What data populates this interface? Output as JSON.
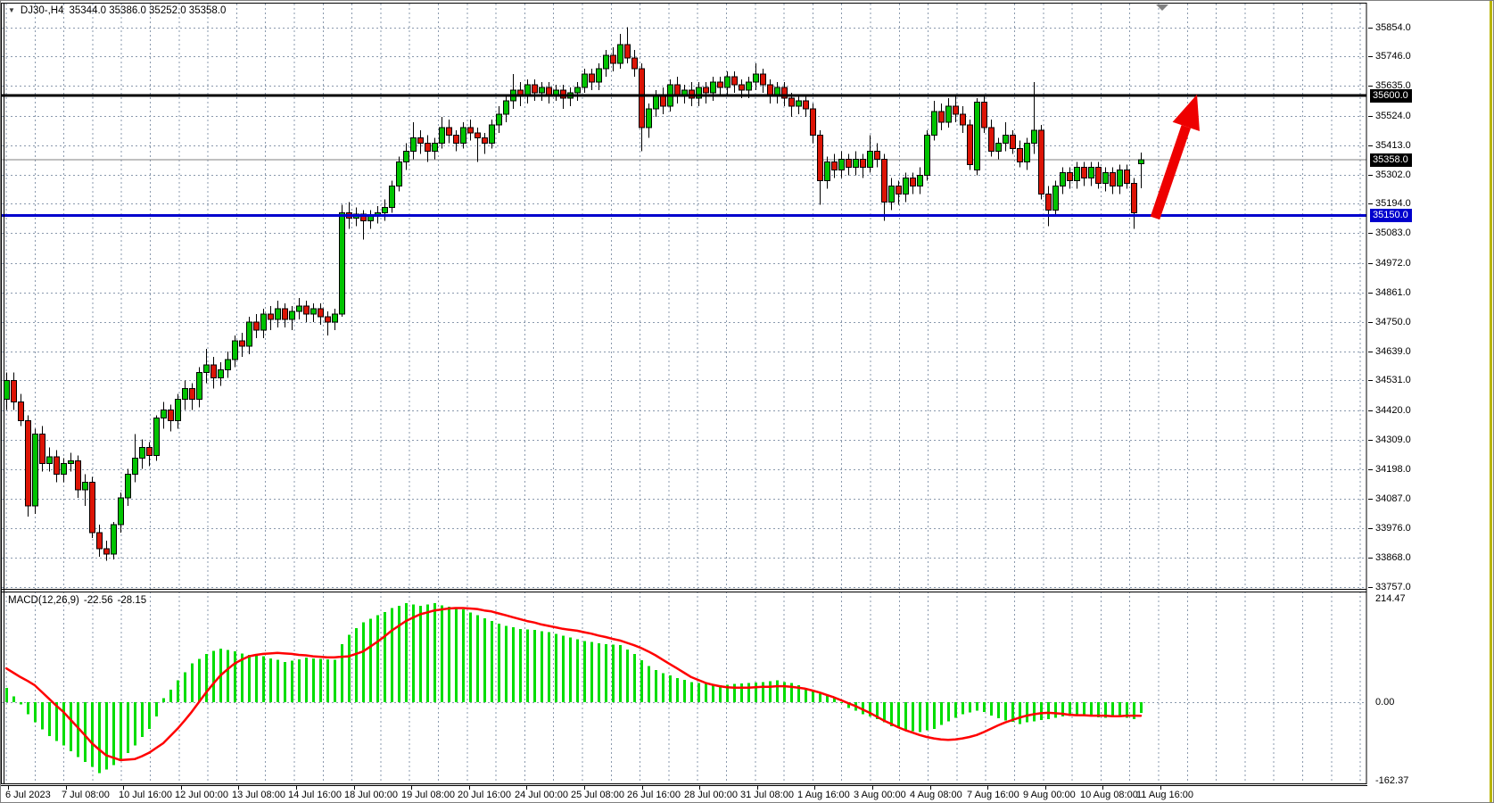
{
  "header": {
    "dropdown_marker": "▼",
    "symbol": "DJ30-,H4",
    "ohlc_values": "35344.0 35386.0 35252.0 35358.0"
  },
  "colors": {
    "bull": "#00c300",
    "bear": "#dc1405",
    "wick": "#000000",
    "grid": "#8a99ad",
    "macd_hist": "#00dd00",
    "macd_signal": "#ff0000",
    "resistance_line": "#000000",
    "support_line": "#0000cd",
    "current_price_line": "#808080",
    "arrow": "#ee0000",
    "badge_text": "#ffffff",
    "right_strip": "#b8b400",
    "scroll_marker": "#808080"
  },
  "chart_data": {
    "type": "candlestick",
    "symbol": "DJ30-",
    "timeframe": "H4",
    "last_bar": {
      "open": 35344.0,
      "high": 35386.0,
      "low": 35252.0,
      "close": 35358.0
    },
    "price_axis_ticks": [
      "35854.0",
      "35746.0",
      "35635.0",
      "35524.0",
      "35413.0",
      "35302.0",
      "35194.0",
      "35083.0",
      "34972.0",
      "34861.0",
      "34750.0",
      "34639.0",
      "34531.0",
      "34420.0",
      "34309.0",
      "34198.0",
      "34087.0",
      "33976.0",
      "33868.0",
      "33757.0"
    ],
    "price_badges": [
      {
        "label": "35600.0",
        "price": 35600,
        "bg": "#000000"
      },
      {
        "label": "35358.0",
        "price": 35358,
        "bg": "#000000"
      },
      {
        "label": "35150.0",
        "price": 35150,
        "bg": "#0000cd"
      }
    ],
    "horizontal_lines": [
      {
        "price": 35600,
        "color": "#000000",
        "width": 3,
        "role": "resistance"
      },
      {
        "price": 35358,
        "color": "#808080",
        "width": 1,
        "role": "current-price"
      },
      {
        "price": 35150,
        "color": "#0000cd",
        "width": 3,
        "role": "support"
      }
    ],
    "time_axis_labels": [
      "6 Jul 2023",
      "7 Jul 08:00",
      "10 Jul 16:00",
      "12 Jul 00:00",
      "13 Jul 08:00",
      "14 Jul 16:00",
      "18 Jul 00:00",
      "19 Jul 08:00",
      "20 Jul 16:00",
      "24 Jul 00:00",
      "25 Jul 08:00",
      "26 Jul 16:00",
      "28 Jul 00:00",
      "31 Jul 08:00",
      "1 Aug 16:00",
      "3 Aug 00:00",
      "4 Aug 08:00",
      "7 Aug 16:00",
      "9 Aug 00:00",
      "10 Aug 08:00",
      "11 Aug 16:00"
    ],
    "candles": [
      [
        34460,
        34560,
        34420,
        34530
      ],
      [
        34530,
        34560,
        34420,
        34450
      ],
      [
        34450,
        34480,
        34360,
        34380
      ],
      [
        34380,
        34400,
        34020,
        34060
      ],
      [
        34060,
        34350,
        34030,
        34330
      ],
      [
        34330,
        34360,
        34190,
        34220
      ],
      [
        34220,
        34280,
        34190,
        34245
      ],
      [
        34245,
        34270,
        34150,
        34180
      ],
      [
        34180,
        34240,
        34150,
        34220
      ],
      [
        34220,
        34260,
        34190,
        34230
      ],
      [
        34230,
        34250,
        34090,
        34120
      ],
      [
        34120,
        34180,
        34060,
        34150
      ],
      [
        34150,
        34170,
        33940,
        33960
      ],
      [
        33960,
        33990,
        33870,
        33900
      ],
      [
        33900,
        33930,
        33855,
        33880
      ],
      [
        33880,
        34000,
        33860,
        33990
      ],
      [
        33990,
        34110,
        33960,
        34090
      ],
      [
        34090,
        34200,
        34060,
        34180
      ],
      [
        34180,
        34330,
        34150,
        34240
      ],
      [
        34240,
        34310,
        34200,
        34280
      ],
      [
        34280,
        34300,
        34210,
        34250
      ],
      [
        34250,
        34400,
        34230,
        34390
      ],
      [
        34390,
        34450,
        34350,
        34420
      ],
      [
        34420,
        34440,
        34340,
        34380
      ],
      [
        34380,
        34480,
        34350,
        34460
      ],
      [
        34460,
        34530,
        34420,
        34500
      ],
      [
        34500,
        34520,
        34420,
        34460
      ],
      [
        34460,
        34580,
        34430,
        34560
      ],
      [
        34560,
        34650,
        34520,
        34590
      ],
      [
        34590,
        34620,
        34500,
        34540
      ],
      [
        34540,
        34600,
        34510,
        34570
      ],
      [
        34570,
        34640,
        34540,
        34610
      ],
      [
        34610,
        34700,
        34580,
        34680
      ],
      [
        34680,
        34710,
        34620,
        34660
      ],
      [
        34660,
        34770,
        34630,
        34750
      ],
      [
        34750,
        34780,
        34690,
        34720
      ],
      [
        34720,
        34800,
        34690,
        34780
      ],
      [
        34780,
        34810,
        34720,
        34760
      ],
      [
        34760,
        34830,
        34730,
        34800
      ],
      [
        34800,
        34820,
        34730,
        34760
      ],
      [
        34760,
        34810,
        34720,
        34790
      ],
      [
        34790,
        34840,
        34760,
        34810
      ],
      [
        34810,
        34830,
        34750,
        34780
      ],
      [
        34780,
        34820,
        34750,
        34800
      ],
      [
        34800,
        34820,
        34740,
        34770
      ],
      [
        34770,
        34790,
        34700,
        34750
      ],
      [
        34750,
        34800,
        34720,
        34780
      ],
      [
        34780,
        35190,
        34770,
        35160
      ],
      [
        35160,
        35200,
        35100,
        35140
      ],
      [
        35140,
        35180,
        35110,
        35155
      ],
      [
        35155,
        35170,
        35060,
        35130
      ],
      [
        35130,
        35170,
        35100,
        35150
      ],
      [
        35150,
        35185,
        35120,
        35160
      ],
      [
        35160,
        35210,
        35130,
        35180
      ],
      [
        35180,
        35280,
        35160,
        35260
      ],
      [
        35260,
        35370,
        35240,
        35350
      ],
      [
        35350,
        35420,
        35320,
        35390
      ],
      [
        35390,
        35500,
        35360,
        35440
      ],
      [
        35440,
        35470,
        35380,
        35420
      ],
      [
        35420,
        35450,
        35350,
        35390
      ],
      [
        35390,
        35440,
        35360,
        35420
      ],
      [
        35420,
        35520,
        35400,
        35480
      ],
      [
        35480,
        35510,
        35420,
        35450
      ],
      [
        35450,
        35470,
        35390,
        35420
      ],
      [
        35420,
        35500,
        35400,
        35480
      ],
      [
        35480,
        35510,
        35430,
        35460
      ],
      [
        35460,
        35480,
        35350,
        35440
      ],
      [
        35440,
        35460,
        35380,
        35420
      ],
      [
        35420,
        35510,
        35400,
        35490
      ],
      [
        35490,
        35560,
        35460,
        35530
      ],
      [
        35530,
        35600,
        35500,
        35580
      ],
      [
        35580,
        35680,
        35550,
        35620
      ],
      [
        35620,
        35650,
        35560,
        35600
      ],
      [
        35600,
        35660,
        35570,
        35640
      ],
      [
        35640,
        35660,
        35580,
        35610
      ],
      [
        35610,
        35650,
        35580,
        35630
      ],
      [
        35630,
        35650,
        35570,
        35600
      ],
      [
        35600,
        35640,
        35580,
        35620
      ],
      [
        35620,
        35640,
        35550,
        35590
      ],
      [
        35590,
        35630,
        35560,
        35610
      ],
      [
        35610,
        35650,
        35580,
        35630
      ],
      [
        35630,
        35700,
        35610,
        35680
      ],
      [
        35680,
        35700,
        35620,
        35650
      ],
      [
        35650,
        35720,
        35620,
        35700
      ],
      [
        35700,
        35770,
        35670,
        35750
      ],
      [
        35750,
        35780,
        35690,
        35720
      ],
      [
        35720,
        35830,
        35700,
        35790
      ],
      [
        35790,
        35855,
        35720,
        35740
      ],
      [
        35740,
        35770,
        35670,
        35700
      ],
      [
        35700,
        35720,
        35390,
        35480
      ],
      [
        35480,
        35570,
        35440,
        35550
      ],
      [
        35550,
        35620,
        35520,
        35600
      ],
      [
        35600,
        35630,
        35530,
        35560
      ],
      [
        35560,
        35660,
        35540,
        35640
      ],
      [
        35640,
        35670,
        35570,
        35600
      ],
      [
        35600,
        35640,
        35570,
        35620
      ],
      [
        35620,
        35650,
        35560,
        35590
      ],
      [
        35590,
        35650,
        35560,
        35630
      ],
      [
        35630,
        35650,
        35570,
        35610
      ],
      [
        35610,
        35670,
        35580,
        35650
      ],
      [
        35650,
        35670,
        35600,
        35630
      ],
      [
        35630,
        35690,
        35600,
        35670
      ],
      [
        35670,
        35690,
        35610,
        35640
      ],
      [
        35640,
        35660,
        35590,
        35620
      ],
      [
        35620,
        35670,
        35590,
        35650
      ],
      [
        35650,
        35720,
        35620,
        35680
      ],
      [
        35680,
        35700,
        35610,
        35640
      ],
      [
        35640,
        35660,
        35570,
        35600
      ],
      [
        35600,
        35650,
        35570,
        35630
      ],
      [
        35630,
        35650,
        35560,
        35590
      ],
      [
        35590,
        35610,
        35520,
        35560
      ],
      [
        35560,
        35600,
        35530,
        35580
      ],
      [
        35580,
        35600,
        35520,
        35550
      ],
      [
        35550,
        35570,
        35420,
        35450
      ],
      [
        35450,
        35470,
        35190,
        35280
      ],
      [
        35280,
        35370,
        35250,
        35350
      ],
      [
        35350,
        35380,
        35290,
        35320
      ],
      [
        35320,
        35390,
        35290,
        35360
      ],
      [
        35360,
        35380,
        35300,
        35330
      ],
      [
        35330,
        35390,
        35300,
        35360
      ],
      [
        35360,
        35380,
        35290,
        35330
      ],
      [
        35330,
        35450,
        35310,
        35390
      ],
      [
        35390,
        35420,
        35330,
        35360
      ],
      [
        35360,
        35380,
        35130,
        35200
      ],
      [
        35200,
        35290,
        35170,
        35260
      ],
      [
        35260,
        35280,
        35190,
        35230
      ],
      [
        35230,
        35310,
        35200,
        35290
      ],
      [
        35290,
        35310,
        35230,
        35260
      ],
      [
        35260,
        35330,
        35230,
        35300
      ],
      [
        35300,
        35470,
        35280,
        35450
      ],
      [
        35450,
        35580,
        35430,
        35540
      ],
      [
        35540,
        35570,
        35470,
        35500
      ],
      [
        35500,
        35590,
        35480,
        35560
      ],
      [
        35560,
        35600,
        35500,
        35530
      ],
      [
        35530,
        35560,
        35460,
        35490
      ],
      [
        35490,
        35510,
        35320,
        35340
      ],
      [
        35320,
        35590,
        35300,
        35575
      ],
      [
        35575,
        35600,
        35460,
        35480
      ],
      [
        35480,
        35510,
        35370,
        35390
      ],
      [
        35390,
        35440,
        35360,
        35420
      ],
      [
        35420,
        35500,
        35390,
        35450
      ],
      [
        35450,
        35470,
        35380,
        35400
      ],
      [
        35400,
        35430,
        35330,
        35350
      ],
      [
        35350,
        35440,
        35320,
        35420
      ],
      [
        35420,
        35650,
        35380,
        35470
      ],
      [
        35470,
        35490,
        35210,
        35230
      ],
      [
        35230,
        35260,
        35110,
        35170
      ],
      [
        35170,
        35280,
        35150,
        35260
      ],
      [
        35260,
        35330,
        35230,
        35310
      ],
      [
        35310,
        35330,
        35250,
        35280
      ],
      [
        35280,
        35350,
        35250,
        35330
      ],
      [
        35330,
        35350,
        35260,
        35290
      ],
      [
        35290,
        35350,
        35260,
        35330
      ],
      [
        35330,
        35350,
        35250,
        35270
      ],
      [
        35270,
        35330,
        35240,
        35310
      ],
      [
        35310,
        35330,
        35230,
        35260
      ],
      [
        35260,
        35340,
        35230,
        35320
      ],
      [
        35320,
        35340,
        35250,
        35270
      ],
      [
        35270,
        35290,
        35100,
        35160
      ],
      [
        35344,
        35386,
        35252,
        35358
      ]
    ],
    "macd": {
      "name": "MACD(12,26,9)",
      "value_main": "-22.56",
      "value_signal": "-28.15",
      "axis_max": "214.47",
      "axis_zero": "0.00",
      "axis_min": "-162.37",
      "histogram": [
        30,
        12,
        -5,
        -25,
        -42,
        -56,
        -70,
        -80,
        -90,
        -102,
        -114,
        -124,
        -134,
        -147,
        -140,
        -130,
        -120,
        -105,
        -90,
        -72,
        -55,
        -30,
        8,
        26,
        45,
        62,
        80,
        90,
        100,
        106,
        111,
        108,
        105,
        101,
        98,
        96,
        95,
        91,
        88,
        83,
        86,
        89,
        92,
        91,
        90,
        89,
        88,
        120,
        140,
        153,
        165,
        173,
        180,
        187,
        195,
        200,
        205,
        202,
        200,
        202,
        205,
        201,
        198,
        195,
        192,
        186,
        180,
        174,
        168,
        163,
        158,
        155,
        152,
        151,
        150,
        147,
        145,
        141,
        138,
        134,
        130,
        127,
        125,
        122,
        120,
        119,
        118,
        109,
        100,
        87,
        75,
        67,
        60,
        55,
        50,
        46,
        42,
        40,
        38,
        36,
        35,
        36,
        38,
        39,
        40,
        41,
        42,
        43,
        45,
        42,
        40,
        35,
        30,
        24,
        18,
        13,
        8,
        -2,
        -12,
        -18,
        -25,
        -30,
        -35,
        -42,
        -50,
        -54,
        -58,
        -60,
        -62,
        -58,
        -55,
        -47,
        -40,
        -32,
        -25,
        -21,
        -18,
        -20,
        -28,
        -33,
        -38,
        -41,
        -45,
        -42,
        -40,
        -37,
        -35,
        -32,
        -30,
        -29,
        -28,
        -29,
        -30,
        -31,
        -32,
        -31,
        -30,
        -32,
        -35,
        -22.56
      ],
      "signal": [
        70,
        61,
        52,
        44,
        35,
        21,
        7,
        -7,
        -20,
        -36,
        -52,
        -68,
        -85,
        -98,
        -110,
        -115,
        -120,
        -119,
        -118,
        -112,
        -105,
        -95,
        -85,
        -70,
        -55,
        -38,
        -20,
        0,
        20,
        38,
        55,
        68,
        80,
        88,
        95,
        98,
        100,
        101,
        102,
        101,
        100,
        98,
        97,
        95,
        94,
        93,
        93,
        94,
        95,
        100,
        105,
        115,
        125,
        136,
        148,
        158,
        168,
        175,
        182,
        186,
        190,
        192,
        194,
        195,
        195,
        194,
        193,
        190,
        188,
        184,
        180,
        176,
        172,
        168,
        165,
        161,
        158,
        155,
        152,
        150,
        148,
        145,
        142,
        138,
        135,
        131,
        128,
        123,
        118,
        112,
        105,
        97,
        88,
        79,
        70,
        61,
        52,
        46,
        40,
        36,
        33,
        31,
        30,
        30,
        30,
        31,
        32,
        32,
        33,
        33,
        32,
        30,
        28,
        24,
        20,
        15,
        10,
        4,
        -2,
        -8,
        -15,
        -22,
        -30,
        -38,
        -45,
        -52,
        -58,
        -63,
        -68,
        -72,
        -75,
        -77,
        -78,
        -77,
        -75,
        -72,
        -68,
        -62,
        -55,
        -48,
        -42,
        -37,
        -32,
        -28,
        -25,
        -23,
        -22,
        -23,
        -24,
        -26,
        -27,
        -27,
        -28,
        -28,
        -28,
        -29,
        -29,
        -28,
        -28,
        -28.15
      ]
    },
    "arrow": {
      "from_price": 35150,
      "to_price": 35600,
      "color": "#ee0000"
    }
  }
}
